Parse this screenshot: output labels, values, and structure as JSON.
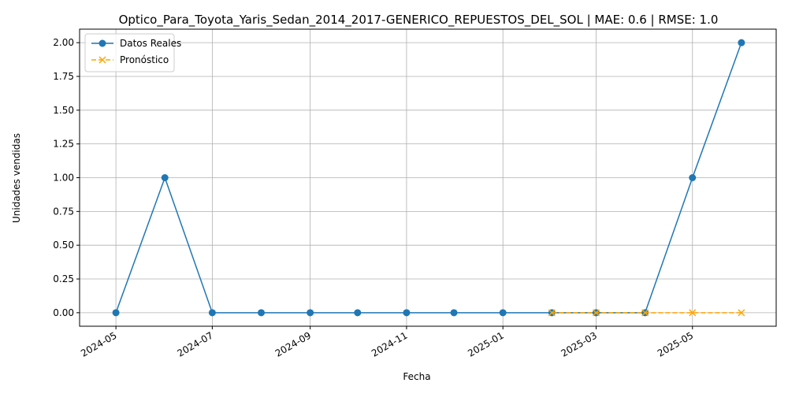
{
  "chart_data": {
    "type": "line",
    "title": "Optico_Para_Toyota_Yaris_Sedan_2014_2017-GENERICO_REPUESTOS_DEL_SOL | MAE: 0.6 | RMSE: 1.0",
    "xlabel": "Fecha",
    "ylabel": "Unidades vendidas",
    "x_ticks": [
      "2024-05",
      "2024-07",
      "2024-09",
      "2024-11",
      "2025-01",
      "2025-03",
      "2025-05"
    ],
    "y_ticks": [
      "0.00",
      "0.25",
      "0.50",
      "0.75",
      "1.00",
      "1.25",
      "1.50",
      "1.75",
      "2.00"
    ],
    "ylim": [
      -0.1,
      2.1
    ],
    "xlim": [
      "2024-04-08",
      "2025-06-23"
    ],
    "grid": true,
    "legend_position": "top-left",
    "series": [
      {
        "name": "Datos Reales",
        "color": "#1f77b4",
        "style": "solid",
        "marker": "circle",
        "x": [
          "2024-05-01",
          "2024-06-01",
          "2024-07-01",
          "2024-08-01",
          "2024-09-01",
          "2024-10-01",
          "2024-11-01",
          "2024-12-01",
          "2025-01-01",
          "2025-02-01",
          "2025-03-01",
          "2025-04-01",
          "2025-05-01",
          "2025-06-01"
        ],
        "values": [
          0,
          1,
          0,
          0,
          0,
          0,
          0,
          0,
          0,
          0,
          0,
          0,
          1,
          2
        ]
      },
      {
        "name": "Pronóstico",
        "color": "#ffa500",
        "style": "dashed",
        "marker": "x",
        "x": [
          "2025-02-01",
          "2025-03-01",
          "2025-04-01",
          "2025-05-01",
          "2025-06-01"
        ],
        "values": [
          0,
          0,
          0,
          0,
          0
        ]
      }
    ]
  }
}
